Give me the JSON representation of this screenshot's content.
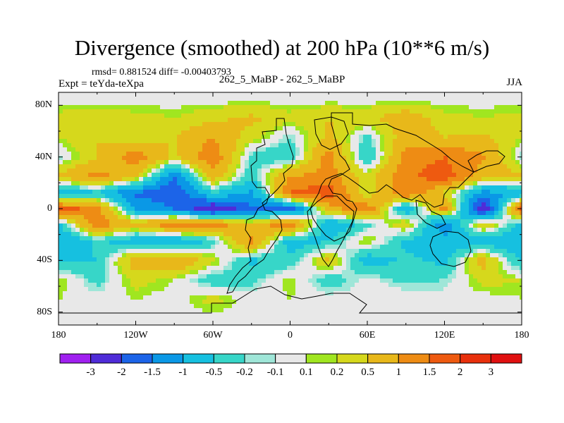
{
  "chart_data": {
    "type": "heatmap",
    "title": "Divergence (smoothed) at 200 hPa (10**6 m/s)",
    "stats_text": "rmsd= 0.881524 diff= -0.00403793",
    "left_label": "Expt = teYda-teXpa",
    "center_label": "262_5_MaBP - 262_5_MaBP",
    "right_label": "JJA",
    "xlabel": "",
    "ylabel": "",
    "xlim": [
      -180,
      180
    ],
    "ylim": [
      -90,
      90
    ],
    "x_ticks": [
      {
        "value": -180,
        "label": "180"
      },
      {
        "value": -120,
        "label": "120W"
      },
      {
        "value": -60,
        "label": "60W"
      },
      {
        "value": 0,
        "label": "0"
      },
      {
        "value": 60,
        "label": "60E"
      },
      {
        "value": 120,
        "label": "120E"
      },
      {
        "value": 180,
        "label": "180"
      }
    ],
    "y_ticks": [
      {
        "value": 80,
        "label": "80N"
      },
      {
        "value": 40,
        "label": "40N"
      },
      {
        "value": 0,
        "label": "0"
      },
      {
        "value": -40,
        "label": "40S"
      },
      {
        "value": -80,
        "label": "80S"
      }
    ],
    "contour_levels": [
      -3,
      -2,
      -1.5,
      -1,
      -0.5,
      -0.2,
      -0.1,
      0.1,
      0.2,
      0.5,
      1,
      1.5,
      2,
      3
    ],
    "colorbar_labels": [
      "-3",
      "-2",
      "-1.5",
      "-1",
      "-0.5",
      "-0.2",
      "-0.1",
      "0.1",
      "0.2",
      "0.5",
      "1",
      "1.5",
      "2",
      "3"
    ],
    "colorbar_colors": [
      "#a020f0",
      "#4f2cd8",
      "#1c64e8",
      "#0a98e6",
      "#16c0e0",
      "#37d6c8",
      "#9fe6d8",
      "#e8e8e8",
      "#a0e620",
      "#d6d81c",
      "#e8b81a",
      "#ee8c14",
      "#ee5a10",
      "#e8300c",
      "#e01010"
    ],
    "field_lons": [
      -180,
      -150,
      -120,
      -90,
      -60,
      -30,
      0,
      30,
      60,
      90,
      120,
      150,
      180
    ],
    "field_lats": [
      85,
      70,
      55,
      40,
      25,
      12,
      0,
      -12,
      -25,
      -40,
      -55,
      -70,
      -85
    ],
    "field_values": [
      [
        0,
        0,
        0,
        0,
        0,
        0,
        0,
        0,
        0,
        0,
        0,
        0,
        0
      ],
      [
        0.3,
        0.4,
        0.3,
        0.2,
        0.4,
        0.6,
        0.3,
        0.5,
        0.4,
        0.8,
        0.3,
        0.2,
        0.3
      ],
      [
        0.2,
        0.5,
        0.3,
        0.5,
        1.0,
        0.3,
        -0.2,
        0.6,
        -0.3,
        0.8,
        0.5,
        0.6,
        0.2
      ],
      [
        -0.2,
        0.5,
        1.3,
        0.4,
        1.4,
        -0.3,
        -0.5,
        1.3,
        -0.6,
        1.2,
        1.5,
        1.1,
        -0.2
      ],
      [
        0.6,
        1.2,
        0.6,
        -1.5,
        0.8,
        -0.4,
        1.0,
        1.2,
        0.3,
        1.4,
        1.8,
        0.7,
        0.6
      ],
      [
        -1.0,
        -0.6,
        -1.6,
        -2.0,
        -0.5,
        -1.1,
        1.6,
        1.8,
        0.2,
        1.5,
        0.4,
        -1.2,
        -1.0
      ],
      [
        1.8,
        1.2,
        -1.0,
        -1.5,
        -2.6,
        -1.6,
        -1.8,
        0.8,
        1.4,
        -1.0,
        1.2,
        -2.6,
        1.8
      ],
      [
        -0.6,
        1.4,
        0.6,
        1.5,
        1.4,
        0.5,
        1.6,
        -1.0,
        -0.3,
        0.5,
        -1.4,
        0.6,
        -0.6
      ],
      [
        -1.0,
        -0.4,
        -0.8,
        -1.0,
        -0.4,
        1.2,
        -0.8,
        -0.5,
        0.3,
        -0.6,
        -0.8,
        -0.8,
        -1.0
      ],
      [
        -0.6,
        -0.5,
        0.8,
        1.0,
        0.3,
        -0.6,
        -0.4,
        0.6,
        -0.8,
        -0.4,
        -0.6,
        0.7,
        -0.6
      ],
      [
        0.2,
        -0.3,
        0.3,
        0.1,
        -0.4,
        -0.3,
        0.2,
        -0.4,
        0.0,
        -0.3,
        -0.2,
        0.3,
        0.2
      ],
      [
        0.1,
        0.0,
        0.1,
        0.0,
        0.3,
        0.0,
        0.1,
        0.0,
        0.0,
        0.1,
        0.0,
        0.0,
        0.1
      ],
      [
        0,
        0,
        0,
        0,
        0,
        0,
        0,
        0,
        0,
        0,
        0,
        0,
        0
      ]
    ]
  }
}
